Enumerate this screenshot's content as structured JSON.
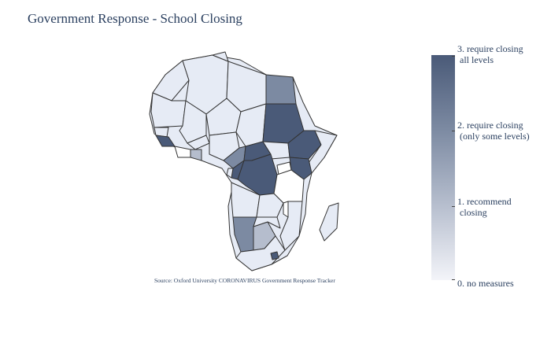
{
  "title": "Government Response - School Closing",
  "source": "Source:  Oxford University CORONAVIRUS Government Response Tracker",
  "colorbar": {
    "colors": [
      "#f3f4f9",
      "#b5bdcd",
      "#7c8aa2",
      "#4a5a78"
    ],
    "tick_labels": [
      "3. require closing\n all levels",
      "2. require closing\n (only some levels)",
      "1. recommend\n closing",
      "0. no measures"
    ]
  },
  "map": {
    "region": "Africa",
    "levels": {
      "level_3": "#4a5a78",
      "level_2": "#7c8aa2",
      "level_1": "#b5bdcd",
      "level_0": "#e6ebf5",
      "no_data": "#ffffff"
    }
  }
}
